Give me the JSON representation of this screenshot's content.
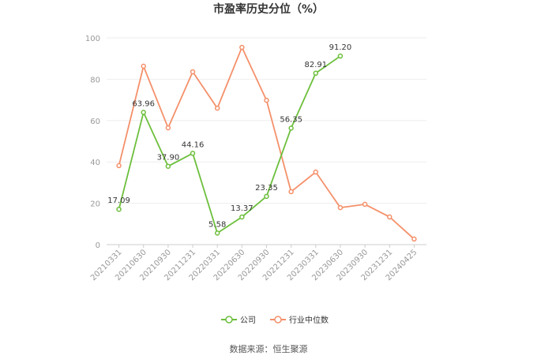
{
  "chart_data": {
    "type": "line",
    "title": "市盈率历史分位（%）",
    "source": "数据来源：恒生聚源",
    "categories": [
      "20210331",
      "20210630",
      "20210930",
      "20211231",
      "20220331",
      "20220630",
      "20220930",
      "20221231",
      "20230331",
      "20230630",
      "20230930",
      "20231231",
      "20240425"
    ],
    "series": [
      {
        "name": "公司",
        "color": "#6cbf3c",
        "values": [
          17.09,
          63.96,
          37.9,
          44.16,
          5.58,
          13.37,
          23.35,
          56.35,
          82.91,
          91.2,
          null,
          null,
          null
        ],
        "value_labels": [
          "17.09",
          "63.96",
          "37.90",
          "44.16",
          "5.58",
          "13.37",
          "23.35",
          "56.35",
          "82.91",
          "91.20",
          null,
          null,
          null
        ]
      },
      {
        "name": "行业中位数",
        "color": "#f4906a",
        "values": [
          38.2,
          86.3,
          56.5,
          83.6,
          66.0,
          95.4,
          69.8,
          25.6,
          35.1,
          17.9,
          19.5,
          13.4,
          2.7
        ]
      }
    ],
    "ylim": [
      0,
      100
    ],
    "yticks": [
      0,
      20,
      40,
      60,
      80,
      100
    ],
    "grid": true
  }
}
